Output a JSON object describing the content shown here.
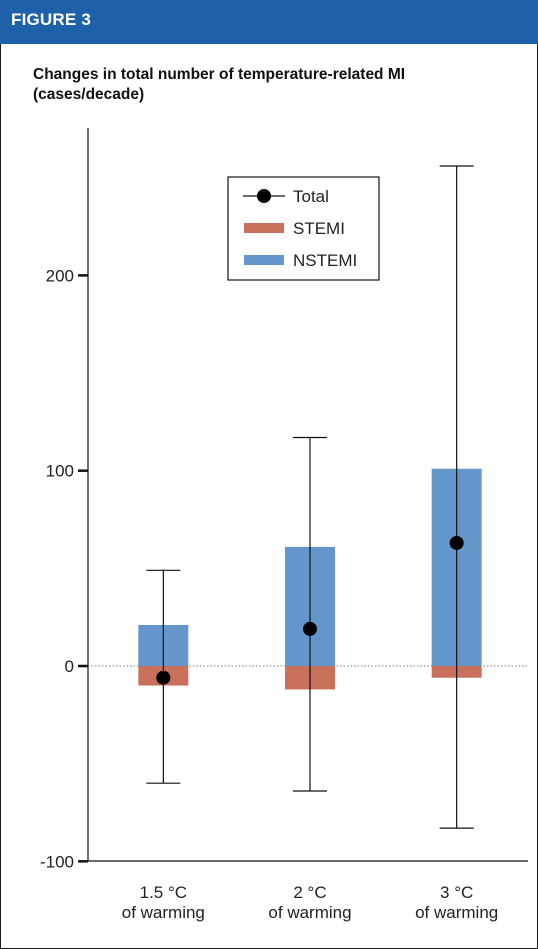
{
  "header": {
    "figure_label": "FIGURE 3"
  },
  "chart_data": {
    "type": "bar",
    "title": "Changes in total number of temperature-related MI (cases/decade)",
    "categories": [
      [
        "1.5 °C",
        "of warming"
      ],
      [
        "2 °C",
        "of warming"
      ],
      [
        "3 °C",
        "of warming"
      ]
    ],
    "ylim": [
      -100,
      275
    ],
    "yticks": [
      -100,
      0,
      100,
      200
    ],
    "series": [
      {
        "name": "STEMI",
        "kind": "bar",
        "color": "#c8705a",
        "values": [
          -10,
          -12,
          -6
        ]
      },
      {
        "name": "NSTEMI",
        "kind": "bar",
        "color": "#6496cc",
        "values": [
          21,
          61,
          101
        ]
      },
      {
        "name": "Total",
        "kind": "point",
        "color": "#000000",
        "values": [
          -6,
          19,
          63
        ],
        "error_low": [
          -60,
          -64,
          -83
        ],
        "error_high": [
          49,
          117,
          256
        ]
      }
    ],
    "legend": {
      "position": "top-center",
      "order": [
        "Total",
        "STEMI",
        "NSTEMI"
      ]
    },
    "zero_line": "dotted",
    "grid": false
  }
}
